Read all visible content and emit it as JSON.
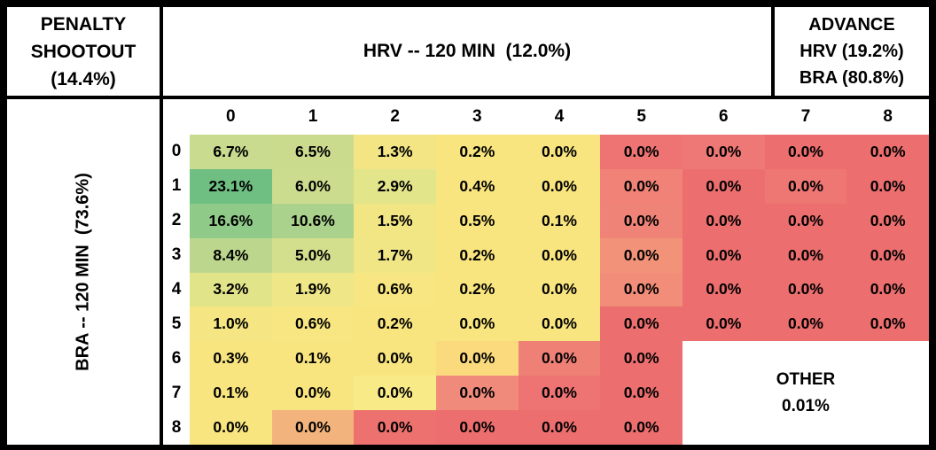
{
  "corner": {
    "lines": [
      "PENALTY",
      "SHOOTOUT",
      "(14.4%)"
    ]
  },
  "top_header": {
    "text": "HRV -- 120 MIN  (12.0%)"
  },
  "advance": {
    "lines": [
      "ADVANCE",
      "HRV (19.2%)",
      "BRA (80.8%)"
    ]
  },
  "left_header": {
    "text": "BRA -- 120 MIN  (73.6%)"
  },
  "other": {
    "label": "OTHER",
    "value": "0.01%"
  },
  "colors": {
    "border": "#000000",
    "background": "#ffffff",
    "green_max": "#6fbe82",
    "yellow_mid": "#f8e57f",
    "red_min": "#ec6e6e"
  },
  "chart_data": {
    "type": "heatmap",
    "title": "PENALTY SHOOTOUT (14.4%)",
    "x_axis": {
      "label": "HRV -- 120 MIN (12.0%)",
      "ticks": [
        "0",
        "1",
        "2",
        "3",
        "4",
        "5",
        "6",
        "7",
        "8"
      ]
    },
    "y_axis": {
      "label": "BRA -- 120 MIN (73.6%)",
      "ticks": [
        "0",
        "1",
        "2",
        "3",
        "4",
        "5",
        "6",
        "7",
        "8"
      ]
    },
    "summary": {
      "penalty_shootout_pct": 14.4,
      "hrv_win_120min_pct": 12.0,
      "bra_win_120min_pct": 73.6,
      "advance_hrv_pct": 19.2,
      "advance_bra_pct": 80.8,
      "other_pct": 0.01
    },
    "values": [
      [
        "6.7%",
        "6.5%",
        "1.3%",
        "0.2%",
        "0.0%",
        "0.0%",
        "0.0%",
        "0.0%",
        "0.0%"
      ],
      [
        "23.1%",
        "6.0%",
        "2.9%",
        "0.4%",
        "0.0%",
        "0.0%",
        "0.0%",
        "0.0%",
        "0.0%"
      ],
      [
        "16.6%",
        "10.6%",
        "1.5%",
        "0.5%",
        "0.1%",
        "0.0%",
        "0.0%",
        "0.0%",
        "0.0%"
      ],
      [
        "8.4%",
        "5.0%",
        "1.7%",
        "0.2%",
        "0.0%",
        "0.0%",
        "0.0%",
        "0.0%",
        "0.0%"
      ],
      [
        "3.2%",
        "1.9%",
        "0.6%",
        "0.2%",
        "0.0%",
        "0.0%",
        "0.0%",
        "0.0%",
        "0.0%"
      ],
      [
        "1.0%",
        "0.6%",
        "0.2%",
        "0.0%",
        "0.0%",
        "0.0%",
        "0.0%",
        "0.0%",
        "0.0%"
      ],
      [
        "0.3%",
        "0.1%",
        "0.0%",
        "0.0%",
        "0.0%",
        "0.0%",
        null,
        null,
        null
      ],
      [
        "0.1%",
        "0.0%",
        "0.0%",
        "0.0%",
        "0.0%",
        "0.0%",
        null,
        null,
        null
      ],
      [
        "0.0%",
        "0.0%",
        "0.0%",
        "0.0%",
        "0.0%",
        "0.0%",
        null,
        null,
        null
      ]
    ],
    "cell_colors": [
      [
        "#c9db8e",
        "#cbdb8e",
        "#f3e584",
        "#f8e57f",
        "#f8e57f",
        "#ed7472",
        "#ee7875",
        "#ec6e6e",
        "#ec6e6e"
      ],
      [
        "#6fbe82",
        "#ccdc8e",
        "#e3e58b",
        "#f8e57f",
        "#f8e57f",
        "#f08277",
        "#ec6e6e",
        "#ee7673",
        "#ec6e6e"
      ],
      [
        "#90ca89",
        "#abd28c",
        "#f2e584",
        "#f8e57f",
        "#f8e57f",
        "#f08378",
        "#ec6e6e",
        "#ec6e6e",
        "#ec6e6e"
      ],
      [
        "#bcd78d",
        "#d4df8e",
        "#f1e685",
        "#f8e57f",
        "#f8e57f",
        "#f29379",
        "#ec6e6e",
        "#ec6e6e",
        "#ec6e6e"
      ],
      [
        "#e2e48a",
        "#eee687",
        "#f7e681",
        "#f8e57f",
        "#f8e57f",
        "#f18d78",
        "#ec6e6e",
        "#ec6e6e",
        "#ec6e6e"
      ],
      [
        "#f5e583",
        "#f7e681",
        "#f8e57f",
        "#f8e57f",
        "#f8e57f",
        "#ec6e6e",
        "#ec6e6e",
        "#ec6e6e",
        "#ec6e6e"
      ],
      [
        "#f8e57f",
        "#f8e57f",
        "#f8e57f",
        "#fbda7e",
        "#ef8076",
        "#ec6e6e",
        null,
        null,
        null
      ],
      [
        "#f8e57f",
        "#f8e57f",
        "#f9ea88",
        "#f08b7c",
        "#ed7472",
        "#ec6e6e",
        null,
        null,
        null
      ],
      [
        "#f8e57f",
        "#f2b47c",
        "#ed716f",
        "#ec6e6e",
        "#ec6e6e",
        "#ec6e6e",
        null,
        null,
        null
      ]
    ],
    "other_region": {
      "label": "OTHER",
      "value": "0.01%",
      "rows": [
        6,
        7,
        8
      ],
      "cols": [
        6,
        7,
        8
      ]
    },
    "legend_position": "none",
    "grid": false
  }
}
